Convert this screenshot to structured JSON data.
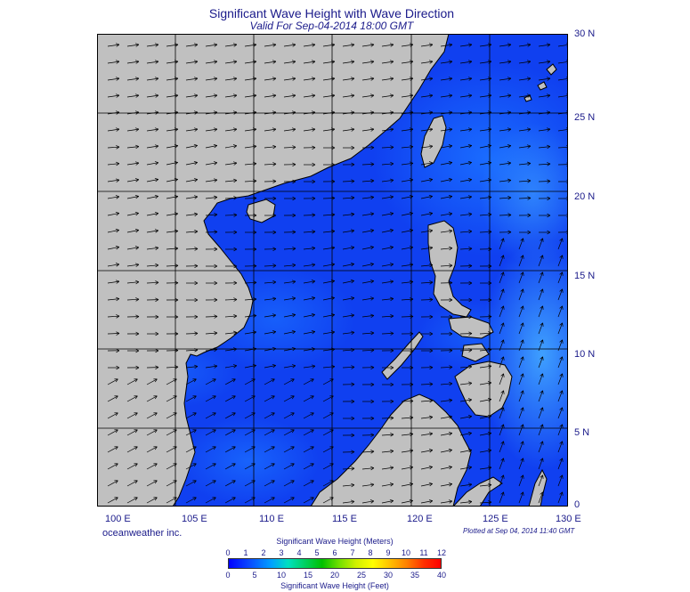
{
  "header": {
    "title": "Significant Wave Height with Wave Direction",
    "subtitle": "Valid For Sep-04-2014 18:00 GMT"
  },
  "map": {
    "lon_range": [
      100,
      130
    ],
    "lat_range": [
      0,
      30
    ],
    "lon_labels": [
      "100 E",
      "105 E",
      "110 E",
      "115 E",
      "120 E",
      "125 E",
      "130 E"
    ],
    "lat_labels": [
      "30 N",
      "25 N",
      "20 N",
      "15 N",
      "10 N",
      "5 N",
      "0"
    ],
    "land_color": "#c0c0c0",
    "sea_color": "#1040f0",
    "wave_direction": "arrows"
  },
  "footer": {
    "credit": "oceanweather inc.",
    "plotted": "Plotted at Sep 04, 2014 11:40 GMT"
  },
  "colorbar": {
    "meters_title": "Significant Wave Height (Meters)",
    "feet_title": "Significant Wave Height (Feet)",
    "meters_ticks": [
      "0",
      "1",
      "2",
      "3",
      "4",
      "5",
      "6",
      "7",
      "8",
      "9",
      "10",
      "11",
      "12"
    ],
    "feet_ticks": [
      "0",
      "5",
      "10",
      "15",
      "20",
      "25",
      "30",
      "35",
      "40"
    ]
  }
}
